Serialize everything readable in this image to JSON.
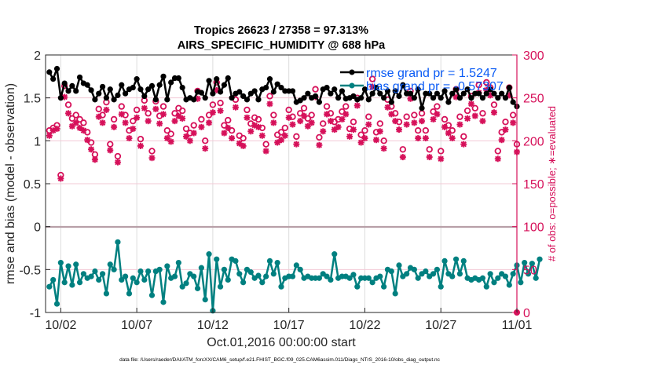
{
  "chart_data": {
    "type": "line",
    "title": "Tropics 26623 / 27358 = 97.313%",
    "subtitle": "AIRS_SPECIFIC_HUMIDITY @ 688 hPa",
    "xlabel": "Oct.01,2016 00:00:00 start",
    "ylabel": "rmse and bias (model - observation)",
    "ylabel_right": "# of obs: o=possible; ∗=evaluated",
    "footnote": "data file: /Users/raeder/DAI/ATM_forcXX/CAM6_setup/f.e21.FHIST_BGC.f09_025.CAM6assim.011/Diags_NTrS_2016-10/obs_diag_output.nc",
    "x_tick_labels": [
      "10/02",
      "10/07",
      "10/12",
      "10/17",
      "10/22",
      "10/27",
      "11/01"
    ],
    "x_tick_days": [
      1,
      6,
      11,
      16,
      21,
      26,
      31
    ],
    "xlim_days": [
      0,
      31
    ],
    "ylim": [
      -1,
      2
    ],
    "y_ticks": [
      -1,
      -0.5,
      0,
      0.5,
      1,
      1.5,
      2
    ],
    "y_tick_labels": [
      "-1",
      "-0.5",
      "0",
      "0.5",
      "1",
      "1.5",
      "2"
    ],
    "ylim_right": [
      0,
      300
    ],
    "y_ticks_right": [
      0,
      50,
      100,
      150,
      200,
      250,
      300
    ],
    "y_tick_labels_right": [
      "0",
      "50",
      "100",
      "150",
      "200",
      "250",
      "300"
    ],
    "grid": true,
    "legend_position": "top-right",
    "colors": {
      "rmse": "#000000",
      "bias": "#008080",
      "obs": "#d6115a",
      "legend_text": "#0a5bf5",
      "zero_line": "#b8a0a8"
    },
    "series": [
      {
        "name": "rmse grand pr = 1.5247",
        "axis": "left",
        "style": "line-marker",
        "x_step_days": 0.25,
        "x_start_days": 0.25,
        "values": [
          1.8,
          1.72,
          1.84,
          1.5,
          1.67,
          1.58,
          1.64,
          1.58,
          1.74,
          1.67,
          1.65,
          1.59,
          1.48,
          1.55,
          1.63,
          1.5,
          1.6,
          1.48,
          1.53,
          1.65,
          1.55,
          1.6,
          1.62,
          1.72,
          1.6,
          1.52,
          1.6,
          1.64,
          1.48,
          1.65,
          1.75,
          1.48,
          1.68,
          1.73,
          1.73,
          1.62,
          1.48,
          1.5,
          1.48,
          1.57,
          1.56,
          1.5,
          1.7,
          1.55,
          1.72,
          1.57,
          1.65,
          1.73,
          1.5,
          1.55,
          1.57,
          1.52,
          1.48,
          1.55,
          1.58,
          1.48,
          1.6,
          1.62,
          1.72,
          1.57,
          1.66,
          1.62,
          1.58,
          1.58,
          1.58,
          1.45,
          1.47,
          1.5,
          1.55,
          1.5,
          1.52,
          1.45,
          1.6,
          1.62,
          1.55,
          1.6,
          1.5,
          1.58,
          1.49,
          1.5,
          1.52,
          1.48,
          1.5,
          1.6,
          1.48,
          1.55,
          1.62,
          1.55,
          1.5,
          1.58,
          1.45,
          1.58,
          1.52,
          1.65,
          1.55,
          1.55,
          1.5,
          1.6,
          1.38,
          1.55,
          1.55,
          1.5,
          1.55,
          1.5,
          1.58,
          1.45,
          1.55,
          1.6,
          1.5,
          1.55,
          1.6,
          1.5,
          1.55,
          1.55,
          1.5,
          1.55,
          1.6,
          1.55,
          1.5,
          1.55,
          1.5,
          1.62,
          1.45,
          1.4
        ]
      },
      {
        "name": "bias grand pr = -0.57307",
        "axis": "left",
        "style": "line-marker",
        "x_step_days": 0.25,
        "x_start_days": 0.25,
        "values": [
          -0.7,
          -0.62,
          -0.9,
          -0.42,
          -0.65,
          -0.46,
          -0.68,
          -0.44,
          -0.65,
          -0.55,
          -0.6,
          -0.58,
          -0.52,
          -0.62,
          -0.55,
          -0.78,
          -0.44,
          -0.5,
          -0.18,
          -0.62,
          -0.58,
          -0.78,
          -0.6,
          -0.65,
          -0.52,
          -0.62,
          -0.52,
          -0.8,
          -0.52,
          -0.5,
          -0.88,
          -0.46,
          -0.6,
          -0.58,
          -0.42,
          -0.7,
          -0.66,
          -0.55,
          -0.58,
          -0.72,
          -0.48,
          -0.85,
          -0.32,
          -0.98,
          -0.38,
          -0.7,
          -0.5,
          -0.62,
          -0.38,
          -0.4,
          -0.55,
          -0.65,
          -0.5,
          -0.53,
          -0.6,
          -0.57,
          -0.65,
          -0.58,
          -0.4,
          -0.55,
          -0.42,
          -0.7,
          -0.6,
          -0.58,
          -0.58,
          -0.45,
          -0.5,
          -0.6,
          -0.58,
          -0.6,
          -0.6,
          -0.6,
          -0.55,
          -0.58,
          -0.62,
          -0.32,
          -0.6,
          -0.58,
          -0.58,
          -0.6,
          -0.56,
          -0.7,
          -0.6,
          -0.6,
          -0.6,
          -0.65,
          -0.6,
          -0.58,
          -0.7,
          -0.5,
          -0.52,
          -0.78,
          -0.45,
          -0.58,
          -0.55,
          -0.48,
          -0.5,
          -0.6,
          -0.55,
          -0.52,
          -0.58,
          -0.55,
          -0.5,
          -0.7,
          -0.4,
          -0.55,
          -0.58,
          -0.38,
          -0.55,
          -0.4,
          -0.6,
          -0.62,
          -0.6,
          -0.62,
          -0.6,
          -0.7,
          -0.55,
          -0.65,
          -0.6,
          -0.55,
          -0.58,
          -0.68,
          -0.55,
          -0.45,
          -0.65,
          -0.42,
          -0.55,
          -0.43,
          -0.6,
          -0.38
        ]
      },
      {
        "name": "obs possible (o)",
        "axis": "right",
        "style": "marker-circle",
        "x_step_days": 0.25,
        "x_start_days": 0.25,
        "values": [
          212,
          215,
          218,
          160,
          264,
          242,
          226,
          230,
          225,
          221,
          210,
          198,
          184,
          237,
          230,
          245,
          196,
          225,
          182,
          240,
          230,
          212,
          223,
          236,
          202,
          247,
          232,
          188,
          246,
          229,
          240,
          212,
          208,
          232,
          238,
          235,
          214,
          209,
          218,
          258,
          225,
          200,
          230,
          242,
          268,
          244,
          218,
          224,
          212,
          248,
          206,
          203,
          236,
          220,
          227,
          225,
          215,
          196,
          252,
          230,
          207,
          210,
          215,
          236,
          228,
          205,
          232,
          238,
          226,
          230,
          260,
          204,
          220,
          240,
          232,
          222,
          225,
          234,
          240,
          214,
          222,
          250,
          207,
          212,
          228,
          272,
          210,
          220,
          200,
          248,
          240,
          232,
          222,
          190,
          228,
          258,
          230,
          212,
          232,
          212,
          190,
          234,
          240,
          188,
          225,
          218,
          212,
          260,
          228,
          205,
          235,
          252,
          238,
          265,
          232,
          268,
          262,
          242,
          188,
          210,
          222,
          262,
          230,
          196
        ]
      },
      {
        "name": "obs evaluated (∗)",
        "axis": "right",
        "style": "marker-star",
        "x_step_days": 0.25,
        "x_start_days": 0.25,
        "values": [
          206,
          212,
          214,
          156,
          251,
          232,
          217,
          221,
          215,
          212,
          201,
          190,
          178,
          228,
          221,
          236,
          189,
          216,
          175,
          231,
          221,
          203,
          214,
          227,
          194,
          238,
          223,
          180,
          237,
          220,
          231,
          203,
          199,
          223,
          229,
          226,
          205,
          200,
          209,
          249,
          216,
          191,
          221,
          233,
          259,
          235,
          209,
          215,
          203,
          239,
          197,
          194,
          227,
          211,
          218,
          216,
          206,
          188,
          243,
          221,
          198,
          201,
          206,
          227,
          219,
          196,
          223,
          229,
          217,
          221,
          251,
          195,
          211,
          231,
          223,
          213,
          216,
          225,
          231,
          205,
          213,
          241,
          198,
          203,
          219,
          263,
          201,
          211,
          191,
          239,
          231,
          223,
          213,
          181,
          219,
          249,
          221,
          203,
          223,
          203,
          181,
          225,
          231,
          179,
          216,
          209,
          203,
          251,
          219,
          196,
          226,
          243,
          229,
          256,
          223,
          259,
          253,
          233,
          179,
          201,
          213,
          253,
          221,
          187
        ]
      }
    ]
  }
}
